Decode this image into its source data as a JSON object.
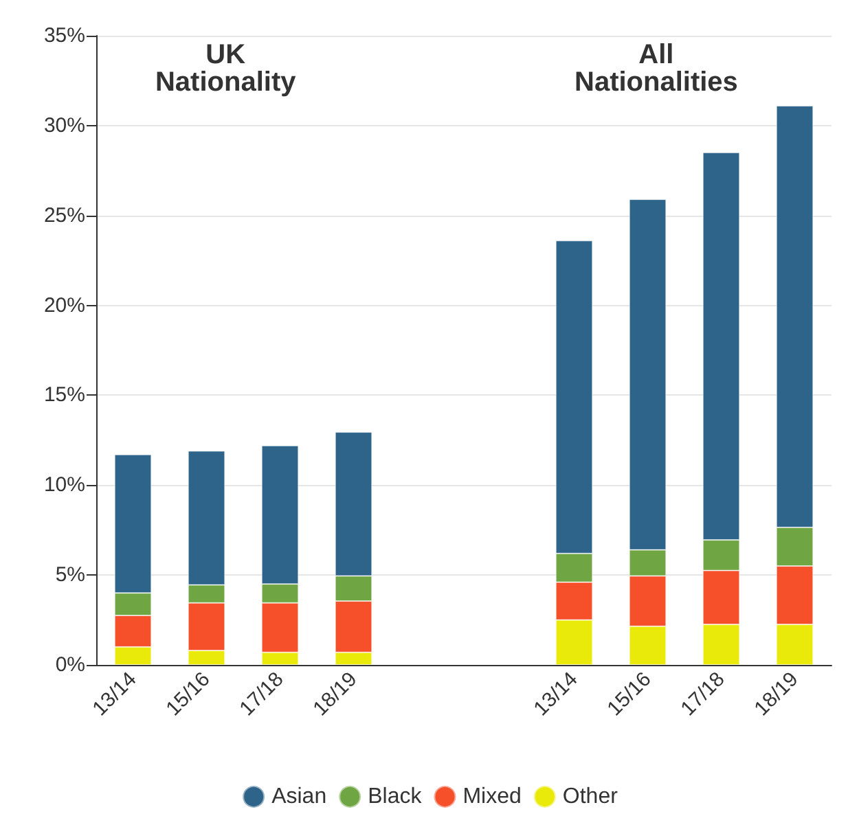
{
  "chart_data": {
    "type": "bar",
    "stacked": true,
    "categories": [
      "13/14",
      "15/16",
      "17/18",
      "18/19",
      null,
      null,
      "13/14",
      "15/16",
      "17/18",
      "18/19"
    ],
    "series": [
      {
        "name": "Other",
        "color": "#eaea0a",
        "values": [
          1.0,
          0.8,
          0.7,
          0.7,
          null,
          null,
          2.5,
          2.15,
          2.25,
          2.25
        ]
      },
      {
        "name": "Mixed",
        "color": "#f5502a",
        "values": [
          1.75,
          2.65,
          2.75,
          2.85,
          null,
          null,
          2.1,
          2.8,
          3.0,
          3.25
        ]
      },
      {
        "name": "Black",
        "color": "#70a544",
        "values": [
          1.25,
          1.0,
          1.05,
          1.4,
          null,
          null,
          1.6,
          1.45,
          1.7,
          2.15
        ]
      },
      {
        "name": "Asian",
        "color": "#2e6489",
        "values": [
          7.7,
          7.45,
          7.7,
          8.0,
          null,
          null,
          17.4,
          19.5,
          21.55,
          23.45
        ]
      }
    ],
    "ylim": [
      0,
      35
    ],
    "yticks": [
      {
        "value": 0,
        "label": "0%"
      },
      {
        "value": 5,
        "label": "5%"
      },
      {
        "value": 10,
        "label": "10%"
      },
      {
        "value": 15,
        "label": "15%"
      },
      {
        "value": 20,
        "label": "20%"
      },
      {
        "value": 25,
        "label": "25%"
      },
      {
        "value": 30,
        "label": "30%"
      },
      {
        "value": 35,
        "label": "35%"
      }
    ],
    "grid": "y",
    "legend": "bottom",
    "annotations": [
      "UK\nNationality",
      "All\nNationalities"
    ]
  }
}
